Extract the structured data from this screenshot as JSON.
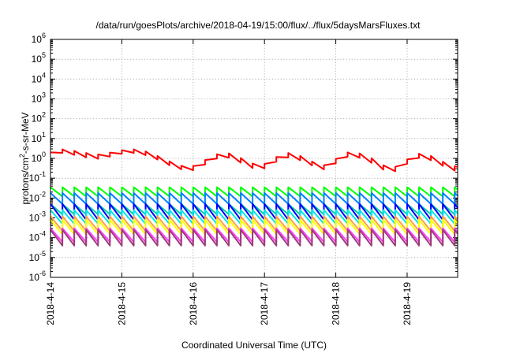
{
  "chart_data": {
    "type": "line",
    "title": "/data/run/goesPlots/archive/2018-04-19/15:00/flux/../flux/5daysMarsFluxes.txt",
    "xlabel": "Coordinated Universal Time (UTC)",
    "ylabel_parts": [
      "protons/cm",
      "2",
      "-s-sr-MeV"
    ],
    "x_scale": "time",
    "xlim": [
      "2018-04-14 00:00",
      "2018-04-19 17:00"
    ],
    "x_ticks": [
      "2018-4-14",
      "2018-4-15",
      "2018-4-16",
      "2018-4-17",
      "2018-4-18",
      "2018-4-19"
    ],
    "y_scale": "log",
    "ylim": [
      1e-06,
      1000000.0
    ],
    "y_tick_exponents": [
      -6,
      -5,
      -4,
      -3,
      -2,
      -1,
      0,
      1,
      2,
      3,
      4,
      5,
      6
    ],
    "y_tick_base": "10",
    "grid": true,
    "legend": "none",
    "sawtooth_period_hours": 4,
    "series": [
      {
        "color": "#ff0000",
        "x": [
          "2018-04-14 00:00",
          "2018-04-14 03:00",
          "2018-04-14 07:00",
          "2018-04-14 11:00",
          "2018-04-14 15:00",
          "2018-04-14 19:00",
          "2018-04-14 23:00",
          "2018-04-15 03:00",
          "2018-04-15 07:00",
          "2018-04-15 11:00",
          "2018-04-15 15:00",
          "2018-04-15 19:00",
          "2018-04-15 23:00",
          "2018-04-16 03:00",
          "2018-04-16 07:00",
          "2018-04-16 11:00",
          "2018-04-16 15:00",
          "2018-04-16 19:00",
          "2018-04-16 23:00",
          "2018-04-17 03:00",
          "2018-04-17 07:00",
          "2018-04-17 11:00",
          "2018-04-17 15:00",
          "2018-04-17 19:00",
          "2018-04-17 23:00",
          "2018-04-18 03:00",
          "2018-04-18 07:00",
          "2018-04-18 11:00",
          "2018-04-18 15:00",
          "2018-04-18 19:00",
          "2018-04-18 23:00",
          "2018-04-19 03:00",
          "2018-04-19 07:00",
          "2018-04-19 11:00",
          "2018-04-19 15:00",
          "2018-04-19 17:00"
        ],
        "peaks": [
          2.0,
          3.0,
          2.5,
          2.0,
          1.5,
          1.8,
          2.5,
          3.0,
          2.5,
          1.5,
          0.8,
          0.45,
          0.35,
          0.6,
          1.5,
          2.0,
          1.2,
          0.6,
          0.4,
          0.9,
          2.0,
          1.5,
          0.8,
          0.4,
          0.6,
          2.0,
          2.0,
          1.2,
          0.5,
          0.3,
          0.6,
          1.8,
          1.5,
          0.8,
          0.3,
          0.5
        ],
        "troughs": [
          1.2,
          2.0,
          1.6,
          1.2,
          0.9,
          1.1,
          1.6,
          2.0,
          1.6,
          1.0,
          0.5,
          0.3,
          0.22,
          0.35,
          0.9,
          1.2,
          0.7,
          0.35,
          0.25,
          0.5,
          1.2,
          0.9,
          0.5,
          0.25,
          0.35,
          1.2,
          1.2,
          0.7,
          0.3,
          0.18,
          0.35,
          1.1,
          0.9,
          0.5,
          0.18,
          0.3
        ]
      },
      {
        "color": "#00ff00",
        "peak": 0.035,
        "trough": 0.012
      },
      {
        "color": "#0080ff",
        "peak": 0.018,
        "trough": 0.005
      },
      {
        "color": "#00d0a0",
        "peak": 0.005,
        "trough": 0.0015
      },
      {
        "color": "#0000ff",
        "peak": 0.005,
        "trough": 0.0008
      },
      {
        "color": "#00e8e8",
        "peak": 0.0025,
        "trough": 0.0005
      },
      {
        "color": "#ffa040",
        "peak": 0.0012,
        "trough": 0.00022
      },
      {
        "color": "#ffff00",
        "peak": 0.0008,
        "trough": 0.00015
      },
      {
        "color": "#ff40ff",
        "peak": 0.0003,
        "trough": 6e-05
      },
      {
        "color": "#9b3c78",
        "peak": 0.00025,
        "trough": 4e-05
      }
    ]
  }
}
